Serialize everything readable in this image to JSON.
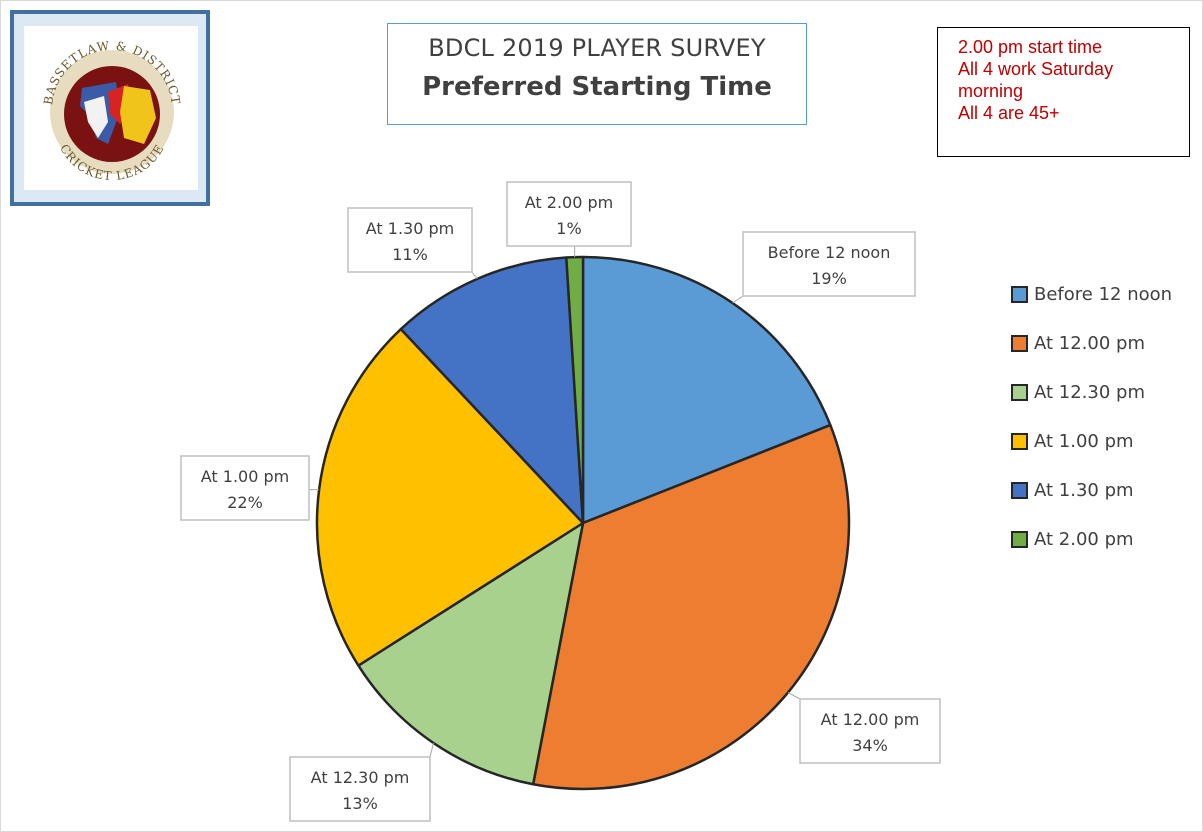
{
  "chart_data": {
    "type": "pie",
    "title": "BDCL 2019 PLAYER SURVEY",
    "subtitle": "Preferred Starting Time",
    "slices": [
      {
        "label": "Before 12 noon",
        "value": 19,
        "color": "#5b9bd5"
      },
      {
        "label": "At 12.00 pm",
        "value": 34,
        "color": "#ed7d31"
      },
      {
        "label": "At 12.30 pm",
        "value": 13,
        "color": "#a9d18e"
      },
      {
        "label": "At 1.00 pm",
        "value": 22,
        "color": "#ffc000"
      },
      {
        "label": "At 1.30 pm",
        "value": 11,
        "color": "#4472c4"
      },
      {
        "label": "At 2.00 pm",
        "value": 1,
        "color": "#70ad47"
      }
    ],
    "data_labels": [
      "19%",
      "34%",
      "13%",
      "22%",
      "11%",
      "1%"
    ],
    "legend_position": "right"
  },
  "logo": {
    "top_text": "BASSETLAW & DISTRICT",
    "bottom_text": "CRICKET LEAGUE"
  },
  "note": {
    "lines": [
      "2.00 pm start time",
      "All 4 work Saturday",
      "morning",
      "All 4 are 45+"
    ],
    "color": "#c00000"
  }
}
